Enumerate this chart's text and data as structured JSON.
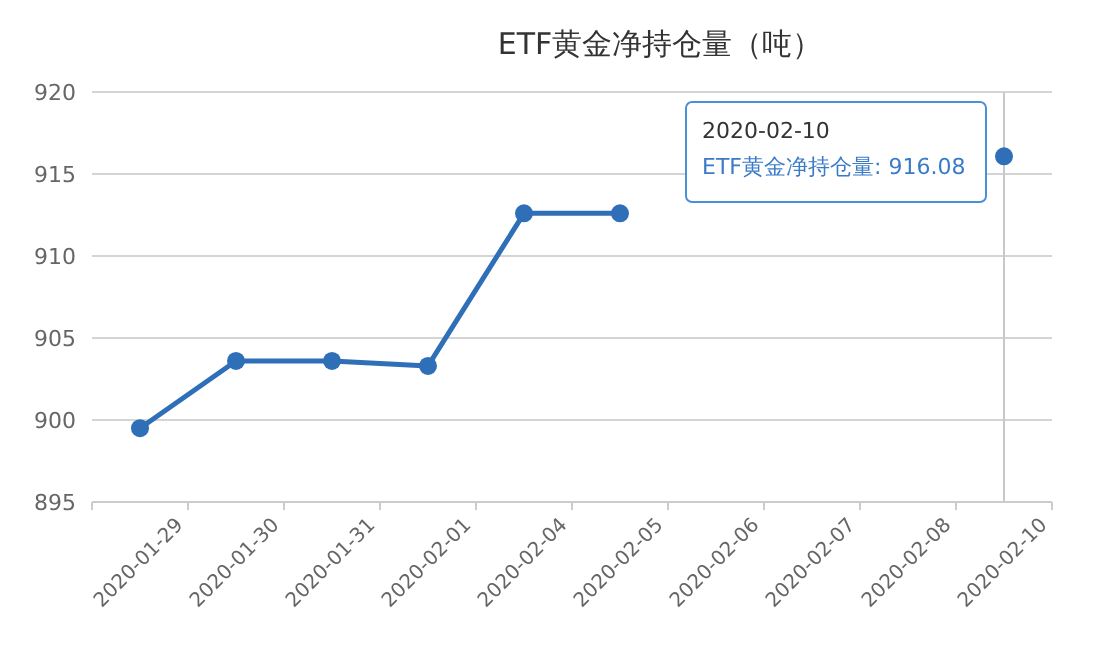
{
  "chart_data": {
    "type": "line",
    "title": "ETF黄金净持仓量（吨）",
    "categories": [
      "2020-01-29",
      "2020-01-30",
      "2020-01-31",
      "2020-02-01",
      "2020-02-04",
      "2020-02-05",
      "2020-02-06",
      "2020-02-07",
      "2020-02-08",
      "2020-02-10"
    ],
    "series": [
      {
        "color": "#2f6fb7",
        "values": [
          899.5,
          903.6,
          903.6,
          903.3,
          912.6,
          912.6,
          null,
          null,
          null,
          916.08
        ]
      }
    ],
    "ylim": [
      895,
      920
    ],
    "yticks": [
      895,
      900,
      905,
      910,
      915,
      920
    ],
    "grid": "y",
    "marker": "circle",
    "line_style": "solid",
    "ref_lines": [
      {
        "axis": "x",
        "value": "2020-02-10",
        "color": "#c8c8c8"
      }
    ],
    "annotations": [
      "2020-02-10",
      "ETF黄金净持仓量: 916.08"
    ]
  }
}
